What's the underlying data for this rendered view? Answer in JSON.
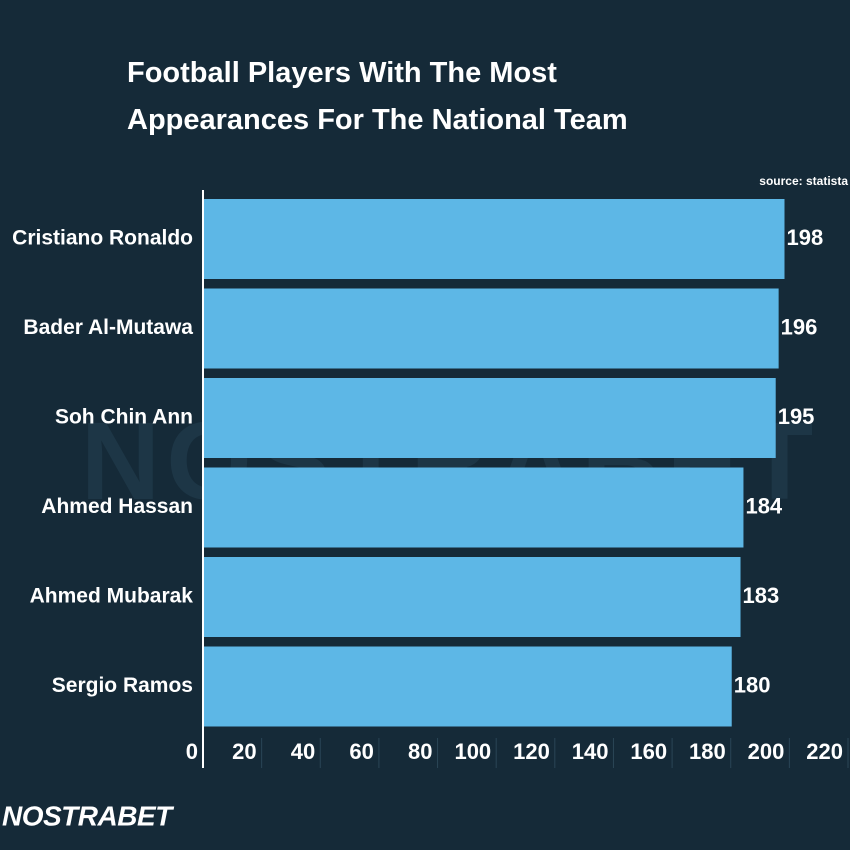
{
  "chart_data": {
    "type": "bar",
    "orientation": "horizontal",
    "title": "Football Players With The Most Appearances For The National Team",
    "source": "source: statista",
    "brand": "NOSTRABET",
    "categories": [
      "Cristiano Ronaldo",
      "Bader Al-Mutawa",
      "Soh Chin Ann",
      "Ahmed Hassan",
      "Ahmed Mubarak",
      "Sergio Ramos"
    ],
    "values": [
      198,
      196,
      195,
      184,
      183,
      180
    ],
    "color": "#5db7e6",
    "xlim": [
      0,
      220
    ],
    "xticks": [
      0,
      20,
      40,
      60,
      80,
      100,
      120,
      140,
      160,
      180,
      200,
      220
    ]
  }
}
